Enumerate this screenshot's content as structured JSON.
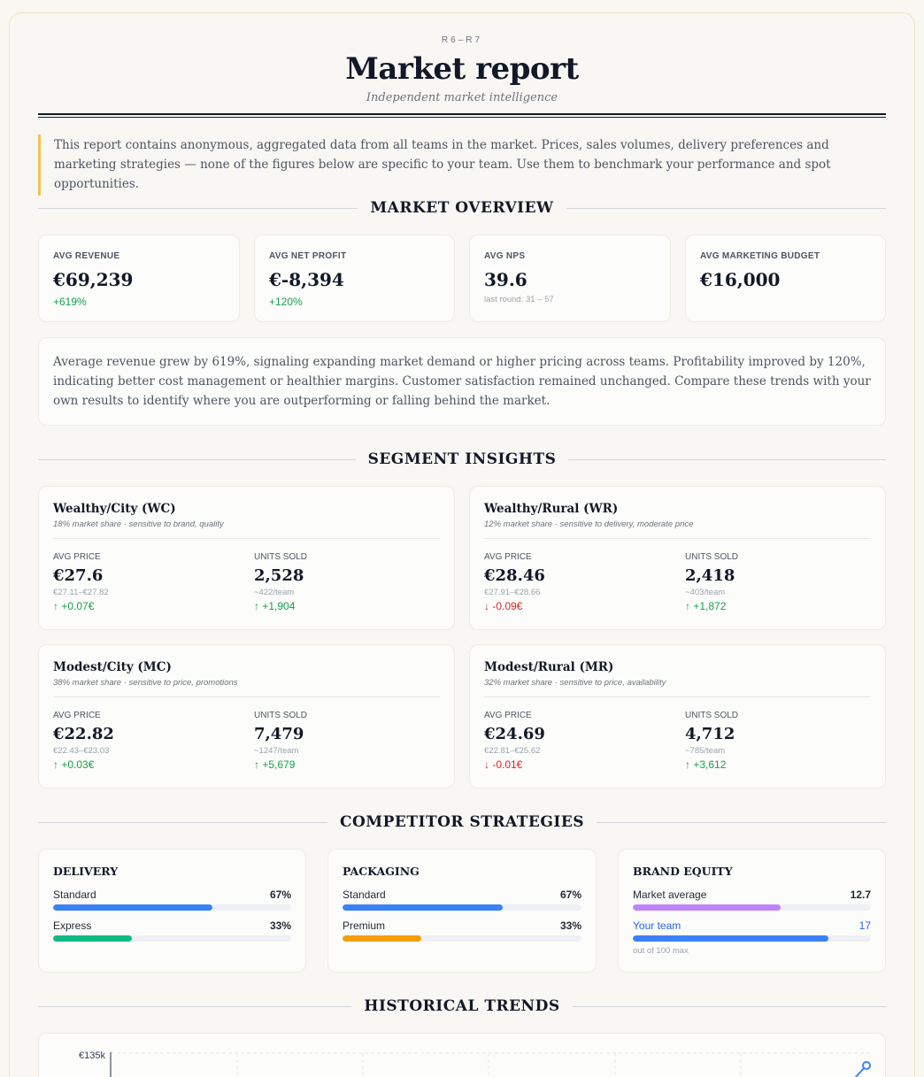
{
  "header": {
    "round": "R6–R7",
    "title": "Market report",
    "subtitle": "Independent market intelligence"
  },
  "intro": "This report contains anonymous, aggregated data from all teams in the market. Prices, sales volumes, delivery preferences and marketing strategies — none of the figures below are specific to your team. Use them to benchmark your performance and spot opportunities.",
  "sections": {
    "overview": "MARKET OVERVIEW",
    "segments": "SEGMENT INSIGHTS",
    "strategies": "COMPETITOR STRATEGIES",
    "trends": "HISTORICAL TRENDS"
  },
  "kpis": [
    {
      "label": "AVG REVENUE",
      "value": "€69,239",
      "delta": "+619%"
    },
    {
      "label": "AVG NET PROFIT",
      "value": "€-8,394",
      "delta": "+120%"
    },
    {
      "label": "AVG NPS",
      "value": "39.6",
      "sub": "last round: 31 – 57"
    },
    {
      "label": "AVG MARKETING BUDGET",
      "value": "€16,000"
    }
  ],
  "summary": "Average revenue grew by 619%, signaling expanding market demand or higher pricing across teams. Profitability improved by 120%, indicating better cost management or healthier margins. Customer satisfaction remained unchanged. Compare these trends with your own results to identify where you are outperforming or falling behind the market.",
  "segments": [
    {
      "name": "Wealthy/City (WC)",
      "desc": "18% market share · sensitive to brand, quality",
      "price_label": "AVG PRICE",
      "price": "€27.6",
      "price_range": "€27.11–€27.82",
      "price_change": "↑ +0.07€",
      "price_dir": "up",
      "units_label": "UNITS SOLD",
      "units": "2,528",
      "units_per": "~422/team",
      "units_change": "↑ +1,904",
      "units_dir": "up"
    },
    {
      "name": "Wealthy/Rural (WR)",
      "desc": "12% market share · sensitive to delivery, moderate price",
      "price_label": "AVG PRICE",
      "price": "€28.46",
      "price_range": "€27.91–€28.66",
      "price_change": "↓ -0.09€",
      "price_dir": "down",
      "units_label": "UNITS SOLD",
      "units": "2,418",
      "units_per": "~403/team",
      "units_change": "↑ +1,872",
      "units_dir": "up"
    },
    {
      "name": "Modest/City (MC)",
      "desc": "38% market share · sensitive to price, promotions",
      "price_label": "AVG PRICE",
      "price": "€22.82",
      "price_range": "€22.43–€23.03",
      "price_change": "↑ +0.03€",
      "price_dir": "up",
      "units_label": "UNITS SOLD",
      "units": "7,479",
      "units_per": "~1247/team",
      "units_change": "↑ +5,679",
      "units_dir": "up"
    },
    {
      "name": "Modest/Rural (MR)",
      "desc": "32% market share · sensitive to price, availability",
      "price_label": "AVG PRICE",
      "price": "€24.69",
      "price_range": "€22.81–€25.62",
      "price_change": "↓ -0.01€",
      "price_dir": "down",
      "units_label": "UNITS SOLD",
      "units": "4,712",
      "units_per": "~785/team",
      "units_change": "↑ +3,612",
      "units_dir": "up"
    }
  ],
  "strategies": {
    "delivery": {
      "title": "DELIVERY",
      "rows": [
        {
          "label": "Standard",
          "pct": "67%",
          "value": 0.67,
          "color": "#3b82f6"
        },
        {
          "label": "Express",
          "pct": "33%",
          "value": 0.33,
          "color": "#10b981"
        }
      ]
    },
    "packaging": {
      "title": "PACKAGING",
      "rows": [
        {
          "label": "Standard",
          "pct": "67%",
          "value": 0.67,
          "color": "#3b82f6"
        },
        {
          "label": "Premium",
          "pct": "33%",
          "value": 0.33,
          "color": "#f59e0b"
        }
      ]
    },
    "brand": {
      "title": "BRAND EQUITY",
      "rows": [
        {
          "label": "Market average",
          "pct": "12.7",
          "value": 0.62,
          "color": "#c084fc"
        },
        {
          "label": "Your team",
          "pct": "17",
          "value": 0.82,
          "color": "#3b82f6"
        }
      ],
      "note": "out of 100 max"
    }
  },
  "chart_data": {
    "type": "line",
    "y_tick_top": "€135k",
    "grid": true
  }
}
